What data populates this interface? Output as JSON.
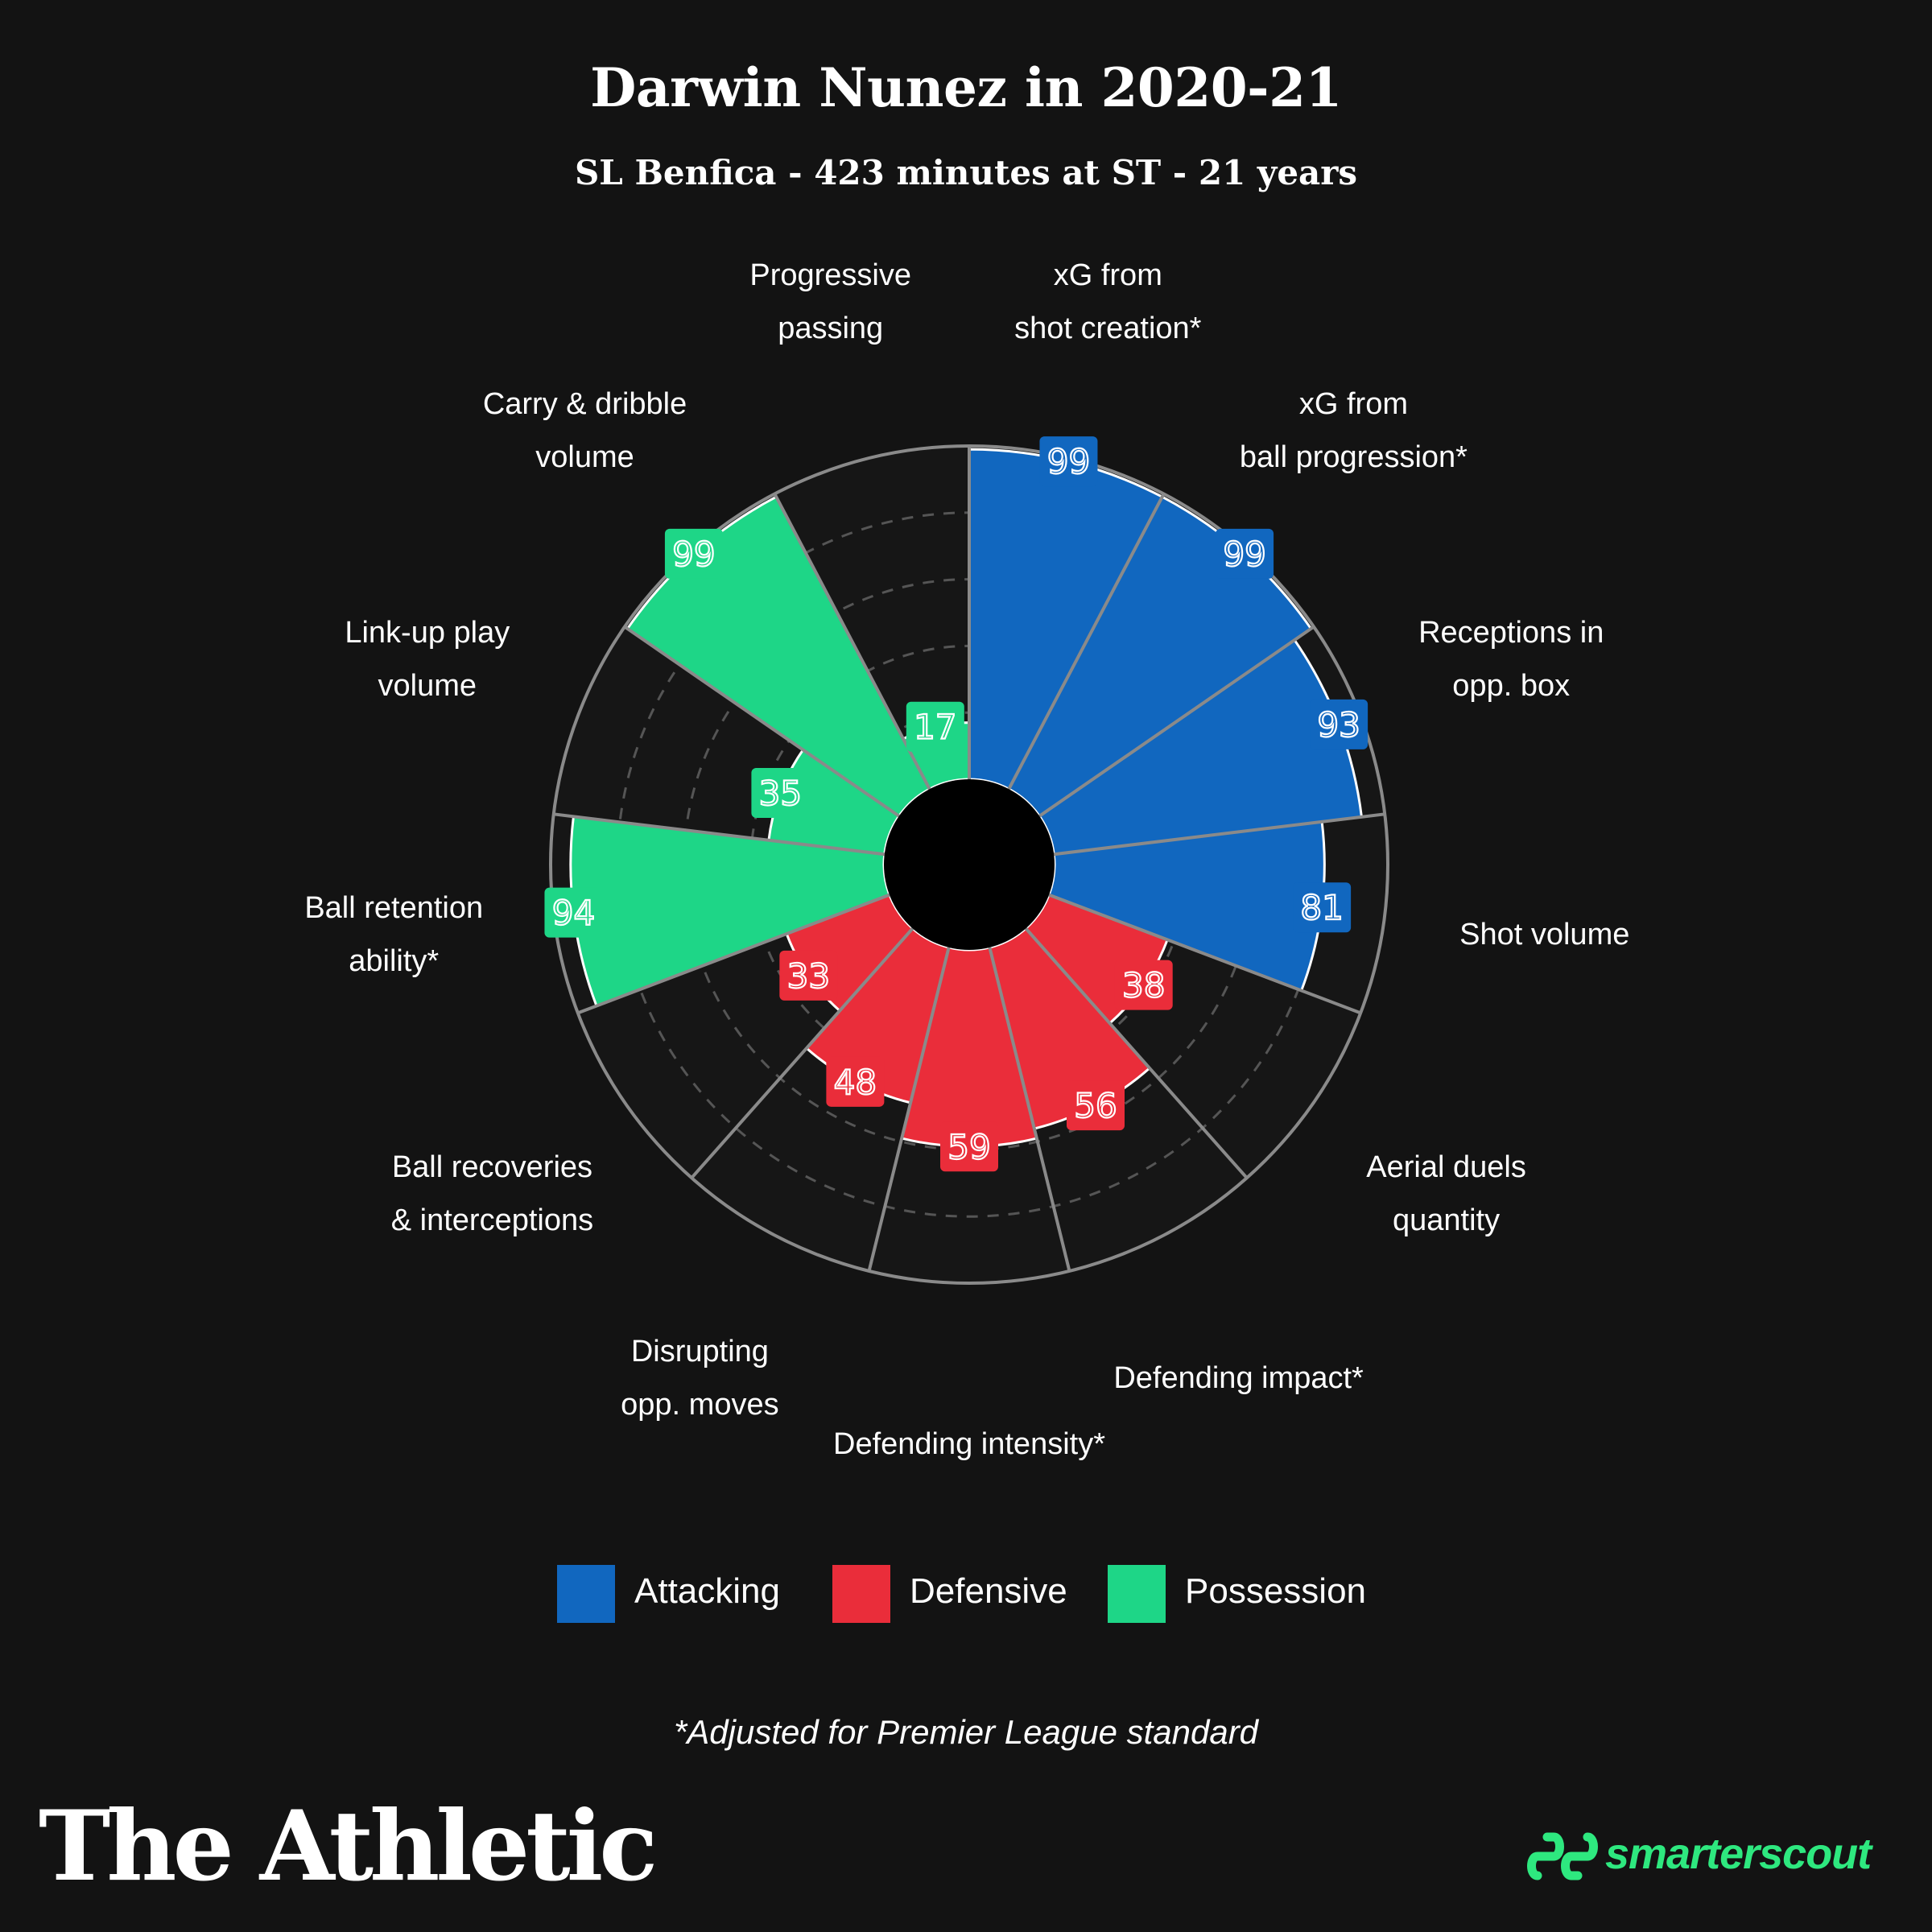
{
  "colors": {
    "background": "#131313",
    "attacking": "#1167bf",
    "defensive": "#ea2d3a",
    "possession": "#1ed687",
    "grid": "#8a8a8a",
    "brand_green": "#2ee87f"
  },
  "header": {
    "title": "Darwin Nunez in 2020-21",
    "subtitle": "SL Benfica - 423 minutes at ST - 21 years"
  },
  "chart_data": {
    "type": "polar-bar",
    "title": "Darwin Nunez in 2020-21",
    "subtitle": "SL Benfica - 423 minutes at ST - 21 years",
    "rlim": [
      0,
      100
    ],
    "gridlines": [
      20,
      40,
      60,
      80
    ],
    "categories": [
      {
        "lines": [
          "xG from",
          "shot creation*"
        ],
        "value": 99,
        "group": "attacking"
      },
      {
        "lines": [
          "xG from",
          "ball progression*"
        ],
        "value": 99,
        "group": "attacking"
      },
      {
        "lines": [
          "Receptions in",
          "opp. box"
        ],
        "value": 93,
        "group": "attacking"
      },
      {
        "lines": [
          "Shot volume"
        ],
        "value": 81,
        "group": "attacking"
      },
      {
        "lines": [
          "Aerial duels",
          "quantity"
        ],
        "value": 38,
        "group": "defensive"
      },
      {
        "lines": [
          "Defending impact*"
        ],
        "value": 56,
        "group": "defensive"
      },
      {
        "lines": [
          "Defending intensity*"
        ],
        "value": 59,
        "group": "defensive"
      },
      {
        "lines": [
          "Disrupting",
          "opp. moves"
        ],
        "value": 48,
        "group": "defensive"
      },
      {
        "lines": [
          "Ball recoveries",
          "& interceptions"
        ],
        "value": 33,
        "group": "defensive"
      },
      {
        "lines": [
          "Ball retention",
          "ability*"
        ],
        "value": 94,
        "group": "possession"
      },
      {
        "lines": [
          "Link-up play",
          "volume"
        ],
        "value": 35,
        "group": "possession"
      },
      {
        "lines": [
          "Carry & dribble",
          "volume"
        ],
        "value": 99,
        "group": "possession"
      },
      {
        "lines": [
          "Progressive",
          "passing"
        ],
        "value": 17,
        "group": "possession"
      }
    ],
    "legend": [
      {
        "group": "attacking",
        "label": "Attacking"
      },
      {
        "group": "defensive",
        "label": "Defensive"
      },
      {
        "group": "possession",
        "label": "Possession"
      }
    ]
  },
  "footnote": "*Adjusted for Premier League standard",
  "branding": {
    "publisher": "The Athletic",
    "partner": "smarterscout",
    "partner_icon": "smarterscout-logo-icon"
  }
}
